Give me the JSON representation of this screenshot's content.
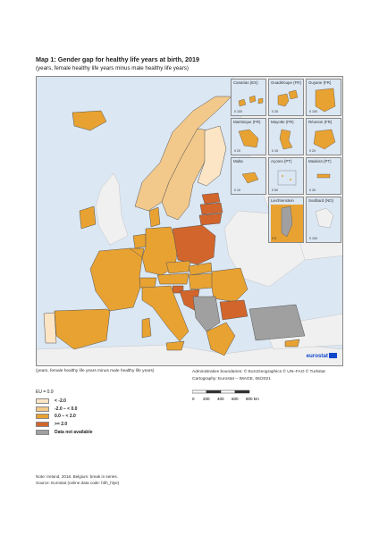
{
  "title": "Map 1: Gender gap for healthy life years at birth, 2019",
  "subtitle": "(years, female healthy life years minus male healthy life years)",
  "caption_left": "(years, female healthy life years minus male healthy life years)",
  "caption_right_1": "Administrative boundaries: © EuroGeographics © UN–FAO © Turkstat",
  "caption_right_2": "Cartography: Eurostat − IMAGE, 06/2021",
  "scale": {
    "labels": [
      "0",
      "200",
      "400",
      "600",
      "800 km"
    ]
  },
  "legend": {
    "title": "EU = 0.9",
    "items": [
      {
        "label": "< -2.0",
        "color": "#fbe5c4"
      },
      {
        "label": "-2.0 – < 0.0",
        "color": "#f3c98b"
      },
      {
        "label": "0.0 – < 2.0",
        "color": "#e8a232"
      },
      {
        "label": ">= 2.0",
        "color": "#d2652b"
      },
      {
        "label": "Data not available",
        "color": "#a0a0a0"
      }
    ]
  },
  "insets": [
    {
      "name": "Canarias (ES)",
      "scale": "0  100"
    },
    {
      "name": "Guadeloupe (FR)",
      "scale": "0  25"
    },
    {
      "name": "Guyane (FR)",
      "scale": "0  100"
    },
    {
      "name": "Martinique (FR)",
      "scale": "0  20"
    },
    {
      "name": "Mayotte (FR)",
      "scale": "0  15"
    },
    {
      "name": "Réunion (FR)",
      "scale": "0  20"
    },
    {
      "name": "Malta",
      "scale": "0  10"
    },
    {
      "name": "Açores (PT)",
      "scale": "0  50"
    },
    {
      "name": "Madeira (PT)",
      "scale": "0  20"
    },
    {
      "name": "Liechtenstein",
      "scale": "0  5"
    },
    {
      "name": "Svalbard (NO)",
      "scale": "0  100"
    }
  ],
  "logo_text": "eurostat",
  "notes": [
    "Note: Ireland, 2018. Belgium: break in series.",
    "Source: Eurostat (online data code: hlth_hlye)"
  ]
}
